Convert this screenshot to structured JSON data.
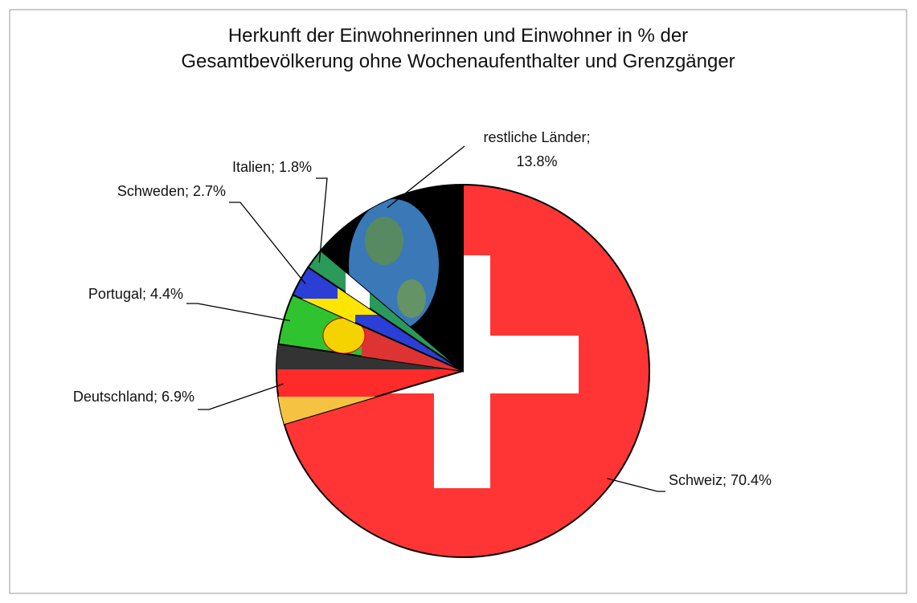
{
  "chart_data": {
    "type": "pie",
    "title": [
      "Herkunft der Einwohnerinnen und Einwohner in % der",
      "Gesamtbevölkerung ohne Wochenaufenthalter und Grenzgänger"
    ],
    "values": [
      70.4,
      6.9,
      4.4,
      2.7,
      1.8,
      13.8
    ],
    "value_labels": [
      "Schweiz; 70.4%",
      "Deutschland; 6.9%",
      "Portugal; 4.4%",
      "Schweden; 2.7%",
      "Italien; 1.8%",
      "restliche Länder; 13.8%"
    ],
    "colors": [
      "#ff3535",
      "#ff2a2a",
      "#2fc42f",
      "#2b3fd6",
      "#2a9a5a",
      "#000000"
    ]
  }
}
